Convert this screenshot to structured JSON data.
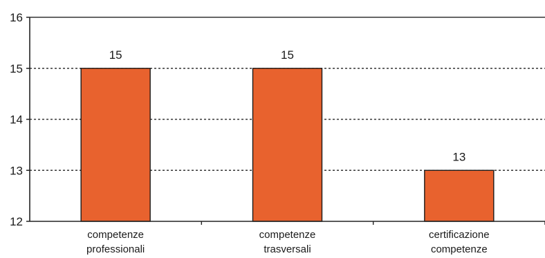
{
  "chart_data": {
    "type": "bar",
    "categories": [
      [
        "competenze",
        "professionali"
      ],
      [
        "competenze",
        "trasversali"
      ],
      [
        "certificazione",
        "competenze"
      ]
    ],
    "values": [
      15,
      15,
      13
    ],
    "data_labels": [
      "15",
      "15",
      "13"
    ],
    "ylim": [
      12,
      16
    ],
    "yticks": [
      "12",
      "13",
      "14",
      "15",
      "16"
    ],
    "grid": "horizontal dotted",
    "colors": {
      "bar": "#E8622E",
      "bar_edge": "#1a1a1a",
      "grid": "#333333",
      "axis": "#222222"
    }
  }
}
